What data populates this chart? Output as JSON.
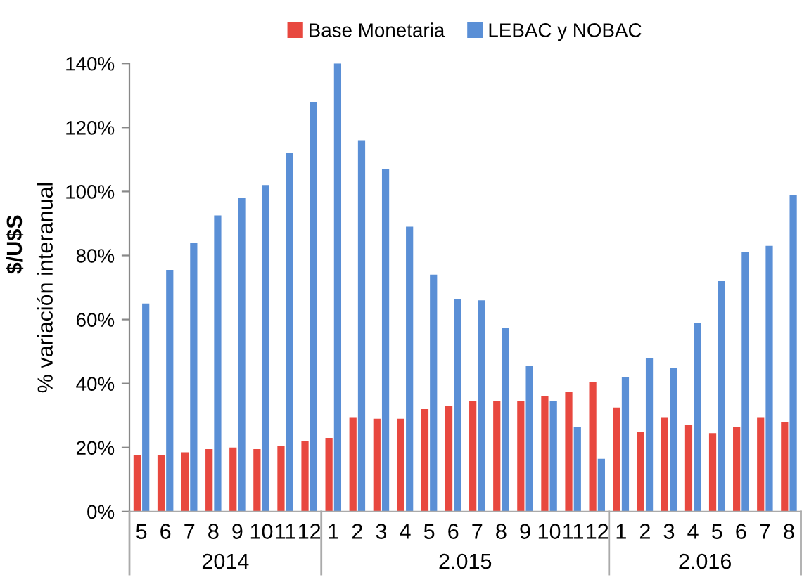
{
  "chart_data": {
    "type": "bar",
    "categories": [
      "5",
      "6",
      "7",
      "8",
      "9",
      "10",
      "11",
      "12",
      "1",
      "2",
      "3",
      "4",
      "5",
      "6",
      "7",
      "8",
      "9",
      "10",
      "11",
      "12",
      "1",
      "2",
      "3",
      "4",
      "5",
      "6",
      "7",
      "8"
    ],
    "series": [
      {
        "name": "Base Monetaria",
        "color": "#e8483f",
        "values": [
          17.5,
          17.5,
          18.5,
          19.5,
          20,
          19.5,
          20.5,
          22,
          23,
          29.5,
          29,
          29,
          32,
          33,
          34.5,
          34.5,
          34.5,
          36,
          37.5,
          40.5,
          32.5,
          25,
          29.5,
          27,
          24.5,
          26.5,
          29.5,
          28
        ]
      },
      {
        "name": "LEBAC y NOBAC",
        "color": "#5a8fd6",
        "values": [
          65,
          75.5,
          84,
          92.5,
          98,
          102,
          112,
          128,
          140,
          116,
          107,
          89,
          74,
          66.5,
          66,
          57.5,
          45.5,
          34.5,
          26.5,
          16.5,
          42,
          48,
          45,
          59,
          72,
          81,
          83,
          99
        ]
      }
    ],
    "ylabel": "% variación interanual",
    "ylim": [
      0,
      140
    ],
    "yticks": [
      {
        "value": 0,
        "label": "0%"
      },
      {
        "value": 20,
        "label": "20%"
      },
      {
        "value": 40,
        "label": "40%"
      },
      {
        "value": 60,
        "label": "60%"
      },
      {
        "value": 80,
        "label": "80%"
      },
      {
        "value": 100,
        "label": "100%"
      },
      {
        "value": 120,
        "label": "120%"
      },
      {
        "value": 140,
        "label": "140%"
      }
    ],
    "annotations": [
      "2014",
      "2.015",
      "2.016",
      "$/U$S"
    ],
    "legend": "top",
    "grid": false
  }
}
